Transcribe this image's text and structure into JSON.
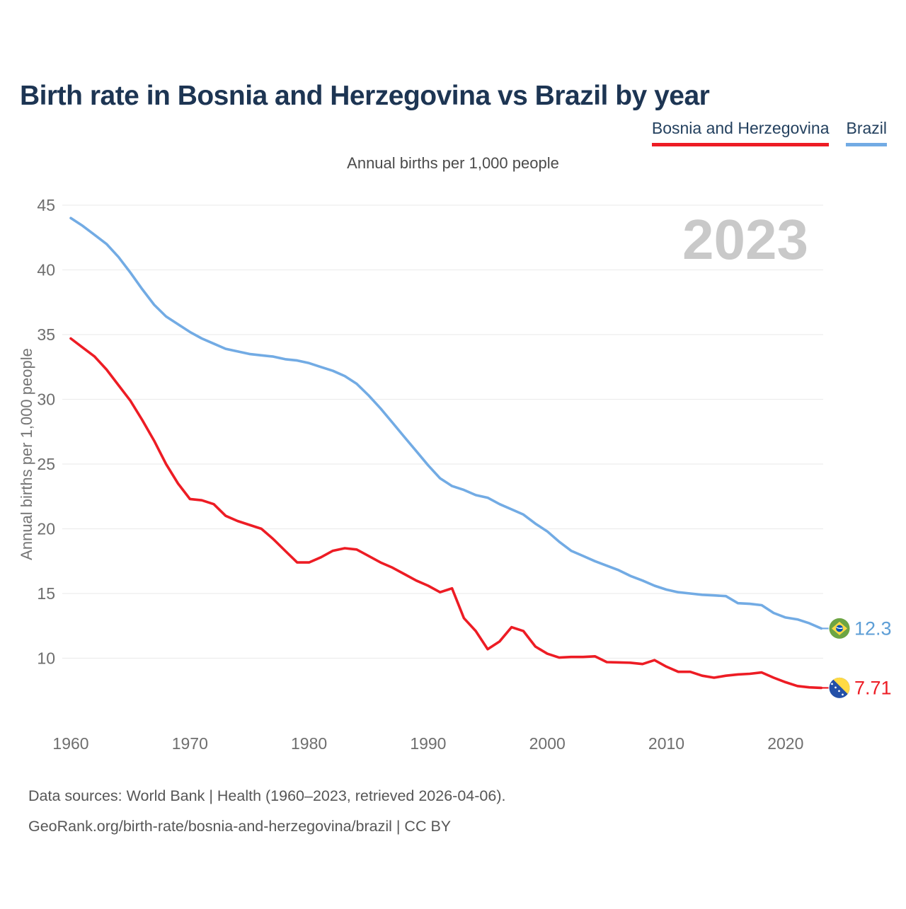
{
  "page": {
    "title": "Birth rate in Bosnia and Herzegovina vs Brazil by year",
    "watermark": "2023"
  },
  "legend": {
    "items": [
      {
        "label": "Bosnia and Herzegovina",
        "color": "#ed1c24"
      },
      {
        "label": "Brazil",
        "color": "#72abe4"
      }
    ]
  },
  "footer": {
    "line1": "Data sources: World Bank | Health (1960–2023, retrieved 2026-04-06).",
    "line2": "GeoRank.org/birth-rate/bosnia-and-herzegovina/brazil | CC BY"
  },
  "colors": {
    "bosnia_red": "#ed1c24",
    "brazil_blue": "#72abe4",
    "brazil_label_blue": "#5d9ed6",
    "title_navy": "#1d3553",
    "tick_gray": "#6e6e6e",
    "grid_gray": "#ededed",
    "watermark_gray": "#c9c9c9"
  },
  "chart_data": {
    "type": "line",
    "title": "Birth rate in Bosnia and Herzegovina vs Brazil by year",
    "subtitle": "Annual births per 1,000 people",
    "ylabel": "Annual births per 1,000 people",
    "xlabel": "",
    "grid": "horizontal-only",
    "legend_position": "top-right",
    "ylim": [
      7,
      46
    ],
    "xlim": [
      1960,
      2023
    ],
    "y_ticks": [
      45,
      40,
      35,
      30,
      25,
      20,
      15,
      10
    ],
    "x_ticks": [
      1960,
      1970,
      1980,
      1990,
      2000,
      2010,
      2020
    ],
    "x": [
      1960,
      1961,
      1962,
      1963,
      1964,
      1965,
      1966,
      1967,
      1968,
      1969,
      1970,
      1971,
      1972,
      1973,
      1974,
      1975,
      1976,
      1977,
      1978,
      1979,
      1980,
      1981,
      1982,
      1983,
      1984,
      1985,
      1986,
      1987,
      1988,
      1989,
      1990,
      1991,
      1992,
      1993,
      1994,
      1995,
      1996,
      1997,
      1998,
      1999,
      2000,
      2001,
      2002,
      2003,
      2004,
      2005,
      2006,
      2007,
      2008,
      2009,
      2010,
      2011,
      2012,
      2013,
      2014,
      2015,
      2016,
      2017,
      2018,
      2019,
      2020,
      2021,
      2022,
      2023
    ],
    "series": [
      {
        "name": "Brazil",
        "slug": "brazil",
        "color": "#72abe4",
        "end_label": "12.3",
        "flag_icon": "brazil-flag-icon",
        "values": [
          44.0,
          43.4,
          42.7,
          42.0,
          41.0,
          39.8,
          38.5,
          37.3,
          36.4,
          35.8,
          35.2,
          34.7,
          34.3,
          33.9,
          33.7,
          33.5,
          33.4,
          33.3,
          33.1,
          33.0,
          32.8,
          32.5,
          32.2,
          31.8,
          31.2,
          30.3,
          29.3,
          28.2,
          27.1,
          26.0,
          24.9,
          23.9,
          23.3,
          23.0,
          22.6,
          22.4,
          21.9,
          21.5,
          21.1,
          20.4,
          19.8,
          19.0,
          18.3,
          17.9,
          17.5,
          17.15,
          16.8,
          16.35,
          16.0,
          15.6,
          15.3,
          15.1,
          15.0,
          14.9,
          14.85,
          14.8,
          14.25,
          14.2,
          14.1,
          13.5,
          13.15,
          13.0,
          12.7,
          12.3
        ]
      },
      {
        "name": "Bosnia and Herzegovina",
        "slug": "bosnia-and-herzegovina",
        "color": "#ed1c24",
        "end_label": "7.71",
        "flag_icon": "bosnia-flag-icon",
        "values": [
          34.7,
          34.0,
          33.3,
          32.3,
          31.1,
          29.9,
          28.4,
          26.8,
          25.0,
          23.5,
          22.3,
          22.2,
          21.9,
          21.0,
          20.6,
          20.3,
          20.0,
          19.2,
          18.3,
          17.4,
          17.4,
          17.8,
          18.3,
          18.5,
          18.4,
          17.9,
          17.4,
          17.0,
          16.5,
          16.0,
          15.6,
          15.1,
          15.4,
          13.1,
          12.1,
          10.7,
          11.3,
          12.4,
          12.1,
          10.9,
          10.35,
          10.05,
          10.1,
          10.1,
          10.15,
          9.7,
          9.68,
          9.65,
          9.55,
          9.85,
          9.35,
          8.95,
          8.95,
          8.65,
          8.5,
          8.65,
          8.75,
          8.8,
          8.9,
          8.5,
          8.15,
          7.85,
          7.75,
          7.71
        ]
      }
    ]
  }
}
